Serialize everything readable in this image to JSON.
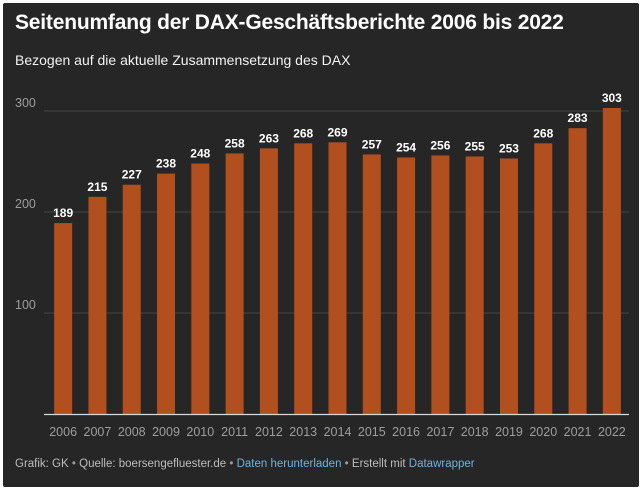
{
  "header": {
    "title": "Seitenumfang der DAX-Geschäftsberichte 2006 bis 2022",
    "subtitle": "Bezogen auf die aktuelle Zusammensetzung des DAX"
  },
  "footer": {
    "credit": "Grafik: GK",
    "source": "Quelle: boersengefluester.de",
    "download_link": "Daten herunterladen",
    "created_with": "Erstellt mit",
    "tool_link": "Datawrapper",
    "separator": "•"
  },
  "colors": {
    "background": "#262626",
    "bar": "#b24f1f",
    "text": "#ffffff",
    "axis_label": "#9e9e9e",
    "gridline": "#444444",
    "link": "#6fb3df"
  },
  "chart_data": {
    "type": "bar",
    "title": "Seitenumfang der DAX-Geschäftsberichte 2006 bis 2022",
    "subtitle": "Bezogen auf die aktuelle Zusammensetzung des DAX",
    "xlabel": "",
    "ylabel": "",
    "categories": [
      "2006",
      "2007",
      "2008",
      "2009",
      "2010",
      "2011",
      "2012",
      "2013",
      "2014",
      "2015",
      "2016",
      "2017",
      "2018",
      "2019",
      "2020",
      "2021",
      "2022"
    ],
    "values": [
      189,
      215,
      227,
      238,
      248,
      258,
      263,
      268,
      269,
      257,
      254,
      256,
      255,
      253,
      268,
      283,
      303
    ],
    "ylim": [
      0,
      300
    ],
    "yticks": [
      100,
      200,
      300
    ],
    "grid": true,
    "legend": "none"
  }
}
